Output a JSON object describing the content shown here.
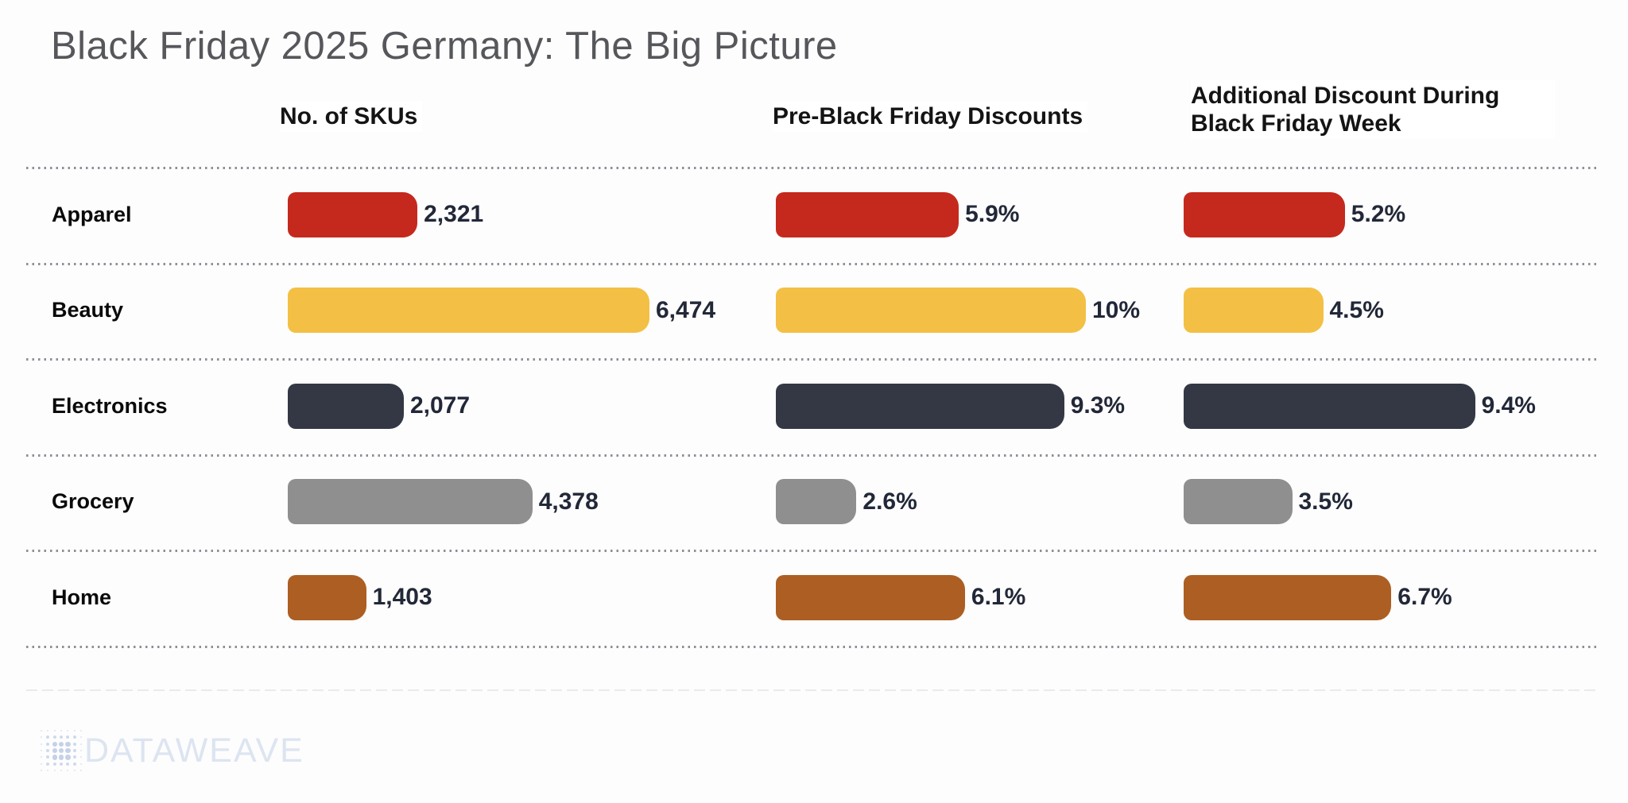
{
  "title": "Black Friday 2025 Germany: The Big Picture",
  "brand": {
    "logo_text": "DATAWEAVE",
    "logo_color": "#dde4f1"
  },
  "chart_data": {
    "type": "bar",
    "orientation": "horizontal",
    "grid": "dotted-row-separators",
    "legend": "none",
    "categories": [
      "Apparel",
      "Beauty",
      "Electronics",
      "Grocery",
      "Home"
    ],
    "colors": [
      "#c5291d",
      "#f3c045",
      "#333844",
      "#8f8f8f",
      "#ad5e22"
    ],
    "value_label_color": "#222838",
    "panels": [
      {
        "title": "No. of SKUs",
        "values": [
          2321,
          6474,
          2077,
          4378,
          1403
        ],
        "labels": [
          "2,321",
          "6,474",
          "2,077",
          "4,378",
          "1,403"
        ],
        "axis_max": 6474
      },
      {
        "title": "Pre-Black Friday Discounts",
        "values": [
          5.9,
          10,
          9.3,
          2.6,
          6.1
        ],
        "labels": [
          "5.9%",
          "10%",
          "9.3%",
          "2.6%",
          "6.1%"
        ],
        "axis_max": 10
      },
      {
        "title": "Additional Discount During Black Friday Week",
        "values": [
          5.2,
          4.5,
          9.4,
          3.5,
          6.7
        ],
        "labels": [
          "5.2%",
          "4.5%",
          "9.4%",
          "3.5%",
          "6.7%"
        ],
        "axis_max": 10
      }
    ]
  }
}
